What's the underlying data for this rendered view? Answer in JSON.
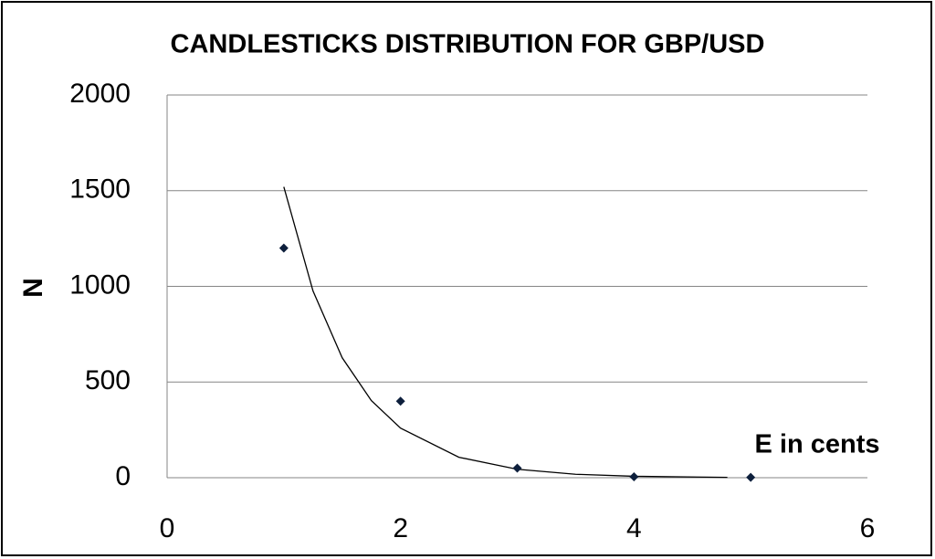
{
  "chart_data": {
    "type": "scatter",
    "title": "CANDLESTICKS DISTRIBUTION FOR GBP/USD",
    "y_label": "N",
    "annotation": "E in cents",
    "x": [
      1,
      2,
      3,
      4,
      5
    ],
    "values": [
      1200,
      400,
      50,
      5,
      2
    ],
    "color": "#0d1f3c",
    "trendline": {
      "x": [
        1,
        1.25,
        1.5,
        1.75,
        2,
        2.5,
        3,
        3.5,
        4,
        4.8
      ],
      "values": [
        1520,
        976,
        627,
        403,
        259,
        107,
        44,
        18,
        7.5,
        1.8
      ],
      "color": "#000000"
    },
    "xlim": [
      0,
      6
    ],
    "xticks": [
      0,
      2,
      4,
      6
    ],
    "ylim": [
      0,
      2000
    ],
    "yticks": [
      0,
      500,
      1000,
      1500,
      2000
    ],
    "grid": true
  }
}
